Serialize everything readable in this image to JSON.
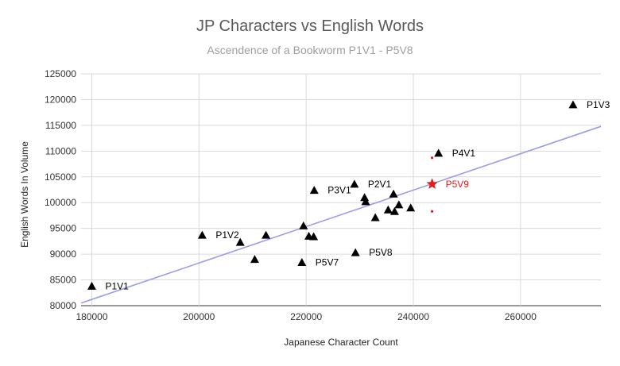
{
  "chart_data": {
    "type": "scatter",
    "title": "JP Characters vs English Words",
    "subtitle": "Ascendence of a Bookworm P1V1 - P5V8",
    "xlabel": "Japanese Character Count",
    "ylabel": "English Words In Volume",
    "xlim": [
      178000,
      275000
    ],
    "ylim": [
      80000,
      125000
    ],
    "xticks": [
      180000,
      200000,
      220000,
      240000,
      260000
    ],
    "yticks": [
      80000,
      85000,
      90000,
      95000,
      100000,
      105000,
      110000,
      115000,
      120000,
      125000
    ],
    "grid": true,
    "marker_color": "#000000",
    "highlight_color": "#e41a1c",
    "trendline_color": "#9c9ce8",
    "trendline": {
      "x": [
        178000,
        275000
      ],
      "y": [
        80500,
        114800
      ]
    },
    "points": [
      {
        "x": 180000,
        "y": 83800,
        "label": "P1V1"
      },
      {
        "x": 200600,
        "y": 93700,
        "label": "P1V2"
      },
      {
        "x": 207700,
        "y": 92300,
        "label": ""
      },
      {
        "x": 210400,
        "y": 89000,
        "label": ""
      },
      {
        "x": 212500,
        "y": 93700,
        "label": ""
      },
      {
        "x": 219200,
        "y": 88400,
        "label": "P5V7"
      },
      {
        "x": 219500,
        "y": 95500,
        "label": ""
      },
      {
        "x": 220500,
        "y": 93500,
        "label": ""
      },
      {
        "x": 221400,
        "y": 93400,
        "label": ""
      },
      {
        "x": 221500,
        "y": 102400,
        "label": "P3V1"
      },
      {
        "x": 229000,
        "y": 103600,
        "label": "P2V1"
      },
      {
        "x": 229200,
        "y": 90300,
        "label": "P5V8"
      },
      {
        "x": 230900,
        "y": 101000,
        "label": ""
      },
      {
        "x": 231100,
        "y": 100200,
        "label": ""
      },
      {
        "x": 232900,
        "y": 97100,
        "label": ""
      },
      {
        "x": 235300,
        "y": 98600,
        "label": ""
      },
      {
        "x": 236300,
        "y": 101700,
        "label": ""
      },
      {
        "x": 236500,
        "y": 98300,
        "label": ""
      },
      {
        "x": 237300,
        "y": 99600,
        "label": ""
      },
      {
        "x": 239500,
        "y": 99000,
        "label": ""
      },
      {
        "x": 244700,
        "y": 109600,
        "label": "P4V1"
      },
      {
        "x": 269800,
        "y": 119000,
        "label": "P1V3"
      }
    ],
    "highlight": {
      "x": 243500,
      "y": 103600,
      "label": "P5V9",
      "error_bar": [
        98300,
        108700
      ]
    }
  }
}
